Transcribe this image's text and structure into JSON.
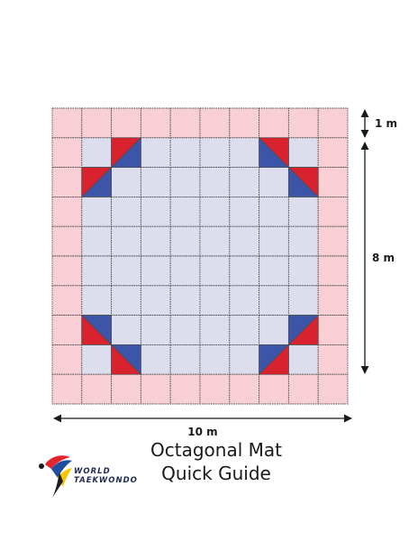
{
  "dimensions": {
    "outer_band": "1 m",
    "inner_height": "8 m",
    "total_width": "10 m"
  },
  "title": {
    "line1": "Octagonal Mat",
    "line2": "Quick Guide"
  },
  "logo": {
    "line1": "WORLD",
    "line2": "TAEKWONDO"
  },
  "colors": {
    "outer_tile": "#f8cfd4",
    "inner_tile": "#dcdeee",
    "grid_line": "#4a4a4a",
    "corner_red": "#d8232e",
    "corner_blue": "#3c55a8",
    "logo_red": "#e2242c",
    "logo_blue": "#1f4ea1",
    "logo_yellow": "#f6c400",
    "logo_dark": "#1c1c1c"
  },
  "icons": [
    "world-taekwondo-logo-icon"
  ]
}
